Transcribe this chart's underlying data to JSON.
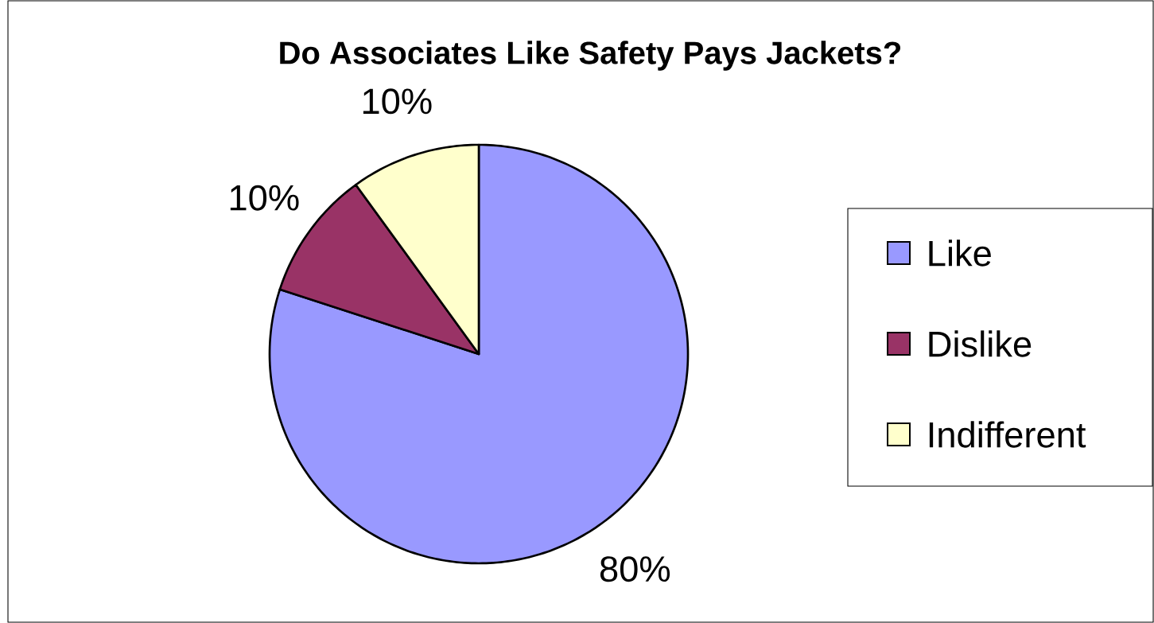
{
  "chart_data": {
    "type": "pie",
    "title": "Do Associates Like Safety Pays Jackets?",
    "categories": [
      "Like",
      "Dislike",
      "Indifferent"
    ],
    "values": [
      80,
      10,
      10
    ],
    "value_labels": [
      "80%",
      "10%",
      "10%"
    ],
    "colors": [
      "#9999ff",
      "#993366",
      "#ffffcc"
    ],
    "legend": "right"
  }
}
